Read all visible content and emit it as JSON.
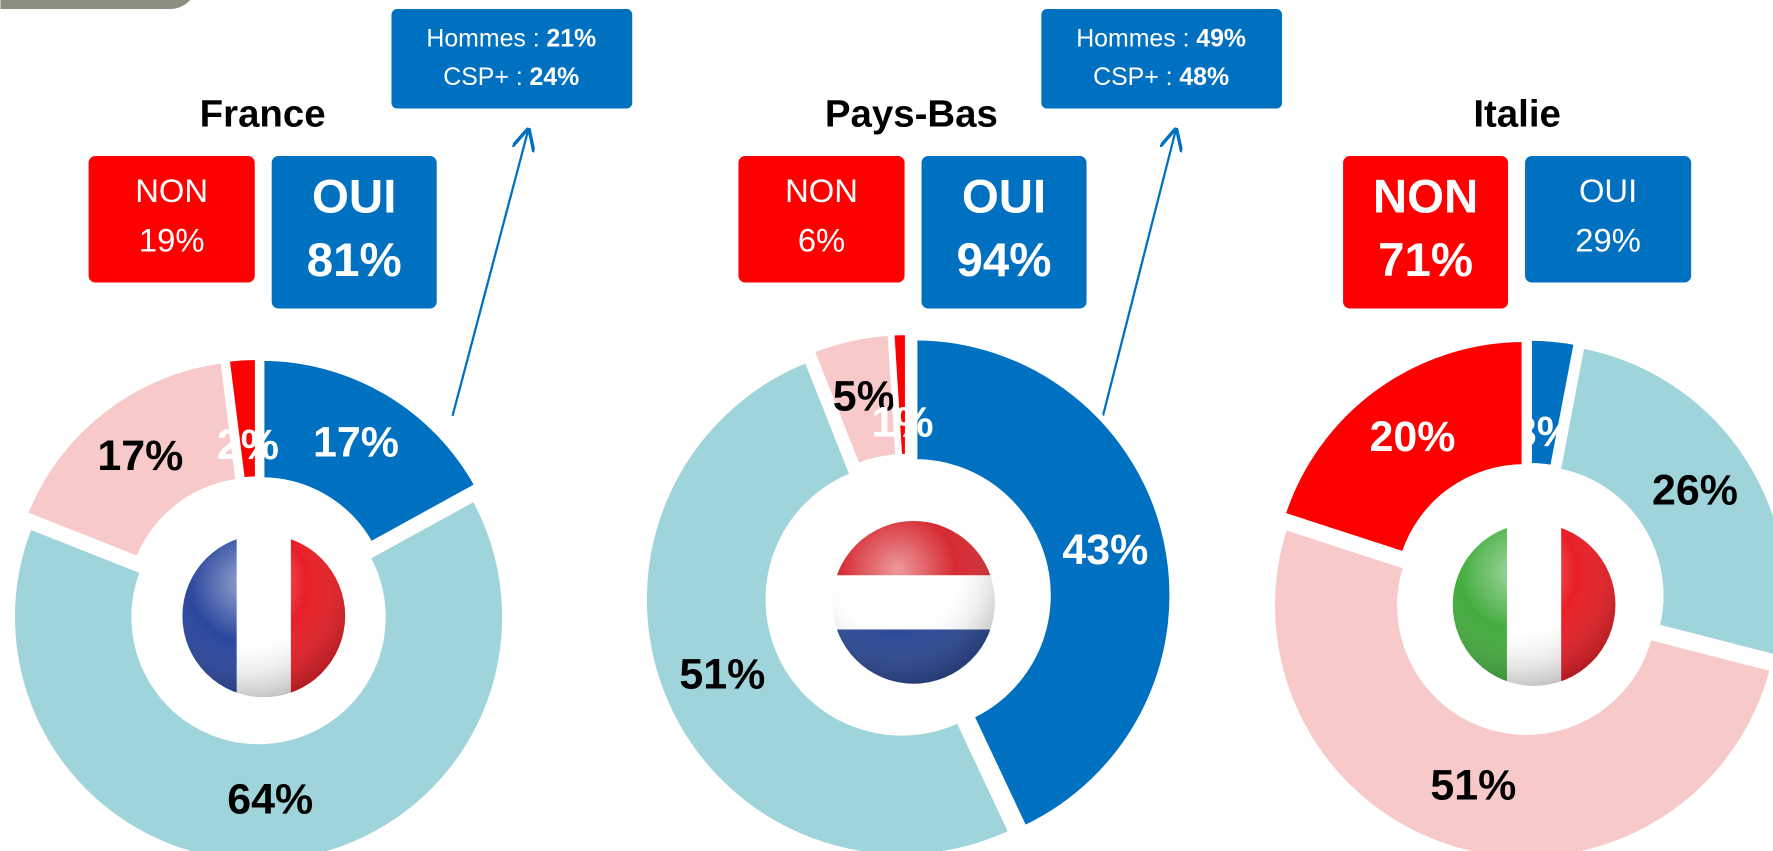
{
  "chart_data": [
    {
      "type": "donut",
      "title": "France",
      "values": [
        17,
        64,
        17,
        2
      ],
      "value_labels": [
        "17%",
        "64%",
        "17%",
        "2%"
      ],
      "colors": [
        "#0070c0",
        "#9fd5da",
        "#f7c9c9",
        "#ff0000"
      ],
      "summary": [
        {
          "label": "NON",
          "value": 19,
          "value_label": "19%",
          "color": "#ff0000"
        },
        {
          "label": "OUI",
          "value": 81,
          "value_label": "81%",
          "color": "#0070c0"
        }
      ],
      "callout": [
        {
          "label": "Hommes :",
          "value": 21,
          "value_label": "21%"
        },
        {
          "label": "CSP+ :",
          "value": 24,
          "value_label": "24%"
        }
      ]
    },
    {
      "type": "donut",
      "title": "Pays-Bas",
      "values": [
        43,
        51,
        5,
        1
      ],
      "value_labels": [
        "43%",
        "51%",
        "5%",
        "1%"
      ],
      "colors": [
        "#0070c0",
        "#9fd5da",
        "#f7c9c9",
        "#ff0000"
      ],
      "summary": [
        {
          "label": "NON",
          "value": 6,
          "value_label": "6%",
          "color": "#ff0000"
        },
        {
          "label": "OUI",
          "value": 94,
          "value_label": "94%",
          "color": "#0070c0"
        }
      ],
      "callout": [
        {
          "label": "Hommes :",
          "value": 49,
          "value_label": "49%"
        },
        {
          "label": "CSP+ :",
          "value": 48,
          "value_label": "48%"
        }
      ]
    },
    {
      "type": "donut",
      "title": "Italie",
      "values": [
        3,
        26,
        51,
        20
      ],
      "value_labels": [
        "3%",
        "26%",
        "51%",
        "20%"
      ],
      "colors": [
        "#0070c0",
        "#9fd5da",
        "#f7c9c9",
        "#ff0000"
      ],
      "summary": [
        {
          "label": "NON",
          "value": 71,
          "value_label": "71%",
          "color": "#ff0000"
        },
        {
          "label": "OUI",
          "value": 29,
          "value_label": "29%",
          "color": "#0070c0"
        }
      ]
    }
  ]
}
